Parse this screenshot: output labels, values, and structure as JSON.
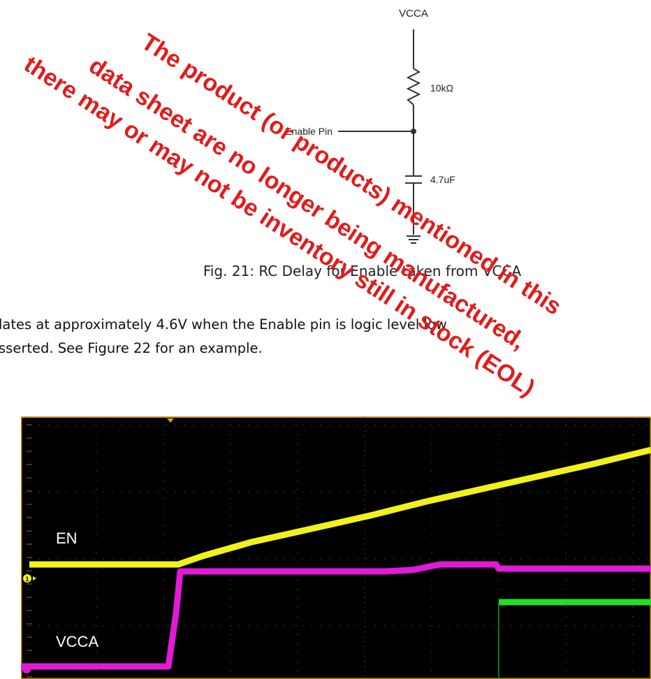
{
  "schematic": {
    "supply_label": "VCCA",
    "resistor_label": "10kΩ",
    "capacitor_label": "4.7uF",
    "pin_label": "Enable Pin"
  },
  "figure_caption": "Fig. 21: RC Delay for Enable taken from VCCA",
  "paragraph": {
    "line1": "lates at approximately 4.6V when the Enable pin is logic level low",
    "line2": "sserted.  See Figure 22 for an example."
  },
  "scope": {
    "trace_labels": {
      "en": "EN",
      "vcca": "VCCA"
    },
    "channel_marker": "1",
    "colors": {
      "background": "#000000",
      "frame": "#b8860b",
      "grid": "#6a6a6a",
      "en_trace": "#f2f21a",
      "vcca_trace": "#e01ad6",
      "third_trace": "#22e022"
    }
  },
  "watermark": {
    "color": "#e21b1b",
    "lines": [
      "The product (or products) mentioned in this",
      "data sheet are no longer being manufactured,",
      "there may or may not be inventory still in stock (EOL)"
    ]
  }
}
